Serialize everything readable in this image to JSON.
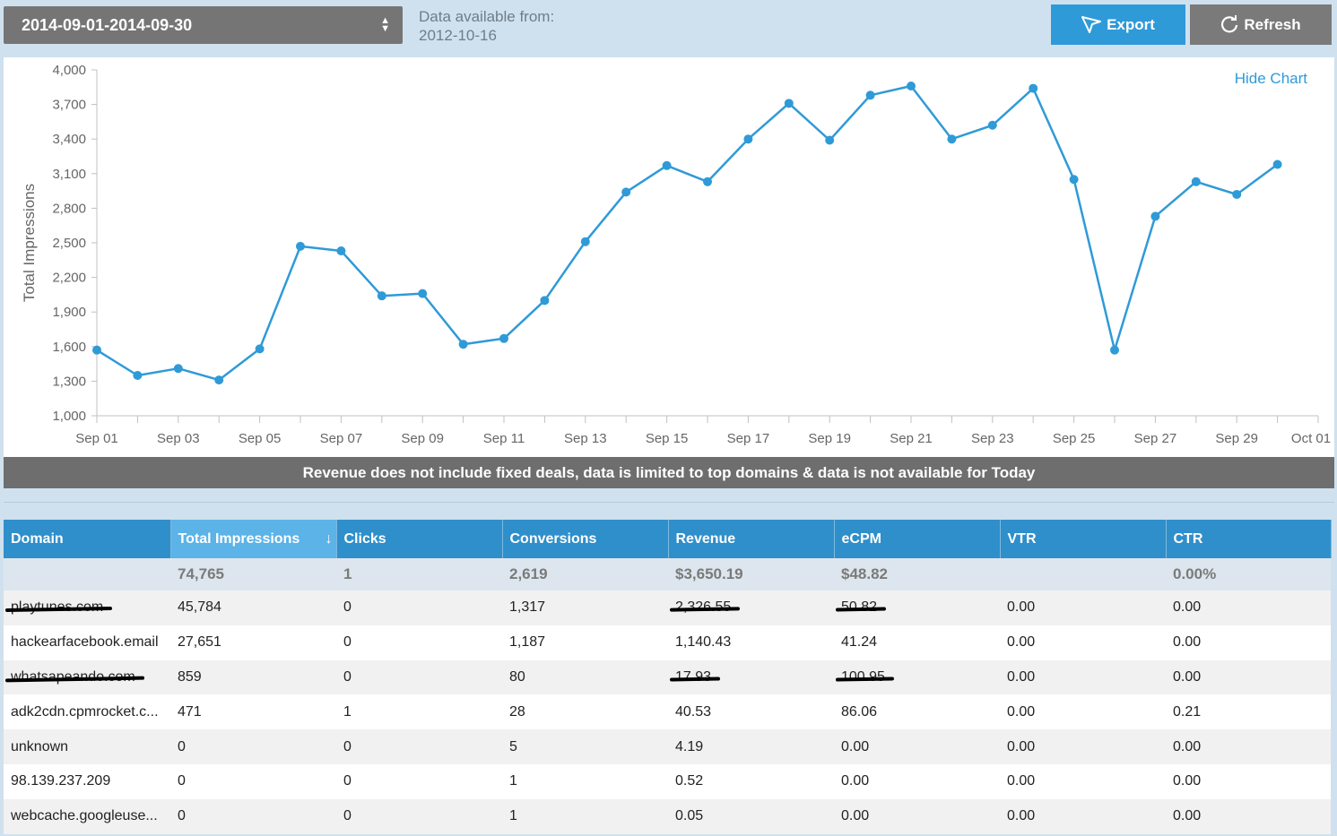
{
  "header": {
    "date_range": "2014-09-01-2014-09-30",
    "available_label": "Data available from:",
    "available_date": "2012-10-16",
    "export_label": "Export",
    "refresh_label": "Refresh"
  },
  "chart_panel": {
    "hide_label": "Hide Chart"
  },
  "chart_data": {
    "type": "line",
    "title": "",
    "xlabel": "",
    "ylabel": "Total Impressions",
    "ylim": [
      1000,
      4000
    ],
    "yticks": [
      "1,000",
      "1,300",
      "1,600",
      "1,900",
      "2,200",
      "2,500",
      "2,800",
      "3,100",
      "3,400",
      "3,700",
      "4,000"
    ],
    "xtick_labels": [
      "Sep 01",
      "Sep 03",
      "Sep 05",
      "Sep 07",
      "Sep 09",
      "Sep 11",
      "Sep 13",
      "Sep 15",
      "Sep 17",
      "Sep 19",
      "Sep 21",
      "Sep 23",
      "Sep 25",
      "Sep 27",
      "Sep 29",
      "Oct 01"
    ],
    "x": [
      "Sep 01",
      "Sep 02",
      "Sep 03",
      "Sep 04",
      "Sep 05",
      "Sep 06",
      "Sep 07",
      "Sep 08",
      "Sep 09",
      "Sep 10",
      "Sep 11",
      "Sep 12",
      "Sep 13",
      "Sep 14",
      "Sep 15",
      "Sep 16",
      "Sep 17",
      "Sep 18",
      "Sep 19",
      "Sep 20",
      "Sep 21",
      "Sep 22",
      "Sep 23",
      "Sep 24",
      "Sep 25",
      "Sep 26",
      "Sep 27",
      "Sep 28",
      "Sep 29",
      "Sep 30"
    ],
    "series": [
      {
        "name": "Total Impressions",
        "color": "#2f9ad8",
        "values": [
          1570,
          1350,
          1410,
          1310,
          1580,
          2470,
          2430,
          2040,
          2060,
          1620,
          1670,
          2000,
          2510,
          2940,
          3170,
          3030,
          3400,
          3710,
          3390,
          3780,
          3860,
          3400,
          3520,
          3840,
          3050,
          1570,
          2730,
          3030,
          2920,
          3180
        ]
      }
    ]
  },
  "notice": "Revenue does not include fixed deals, data is limited to top domains & data is not available for Today",
  "table": {
    "columns": [
      "Domain",
      "Total Impressions",
      "Clicks",
      "Conversions",
      "Revenue",
      "eCPM",
      "VTR",
      "CTR"
    ],
    "sort_indicator": "↓",
    "totals": [
      "",
      "74,765",
      "1",
      "2,619",
      "$3,650.19",
      "$48.82",
      "",
      "0.00%"
    ],
    "rows": [
      [
        "playtunes.com",
        "45,784",
        "0",
        "1,317",
        "2,326.55",
        "50.82",
        "0.00",
        "0.00"
      ],
      [
        "hackearfacebook.email",
        "27,651",
        "0",
        "1,187",
        "1,140.43",
        "41.24",
        "0.00",
        "0.00"
      ],
      [
        "whatsapeando.com",
        "859",
        "0",
        "80",
        "17.93",
        "100.95",
        "0.00",
        "0.00"
      ],
      [
        "adk2cdn.cpmrocket.c...",
        "471",
        "1",
        "28",
        "40.53",
        "86.06",
        "0.00",
        "0.21"
      ],
      [
        "unknown",
        "0",
        "0",
        "5",
        "4.19",
        "0.00",
        "0.00",
        "0.00"
      ],
      [
        "98.139.237.209",
        "0",
        "0",
        "1",
        "0.52",
        "0.00",
        "0.00",
        "0.00"
      ],
      [
        "webcache.googleuse...",
        "0",
        "0",
        "1",
        "0.05",
        "0.00",
        "0.00",
        "0.00"
      ]
    ],
    "redacted": [
      [
        0,
        0
      ],
      [
        0,
        4
      ],
      [
        0,
        5
      ],
      [
        2,
        0
      ],
      [
        2,
        4
      ],
      [
        2,
        5
      ]
    ]
  }
}
